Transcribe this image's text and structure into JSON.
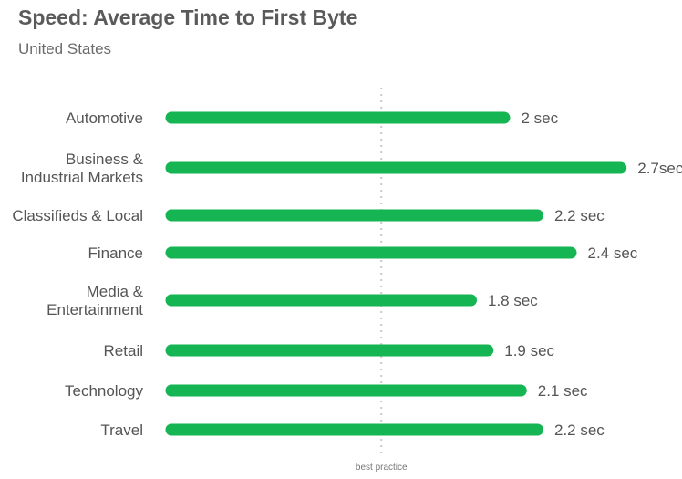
{
  "chart_data": {
    "type": "bar",
    "orientation": "horizontal",
    "title": "Speed: Average Time to First Byte",
    "subtitle": "United States",
    "categories": [
      [
        "Automotive"
      ],
      [
        "Business &",
        "Industrial Markets"
      ],
      [
        "Classifieds & Local"
      ],
      [
        "Finance"
      ],
      [
        "Media &",
        "Entertainment"
      ],
      [
        "Retail"
      ],
      [
        "Technology"
      ],
      [
        "Travel"
      ]
    ],
    "values": [
      2.0,
      2.7,
      2.2,
      2.4,
      1.8,
      1.9,
      2.1,
      2.2
    ],
    "value_labels": [
      "2 sec",
      "2.7sec",
      "2.2 sec",
      "2.4 sec",
      "1.8 sec",
      "1.9 sec",
      "2.1 sec",
      "2.2 sec"
    ],
    "reference_line": {
      "value": 1.3,
      "label": "best practice"
    },
    "bar_color": "#14b552",
    "reference_color": "#c9c9c9",
    "grid": false,
    "legend": "none"
  }
}
